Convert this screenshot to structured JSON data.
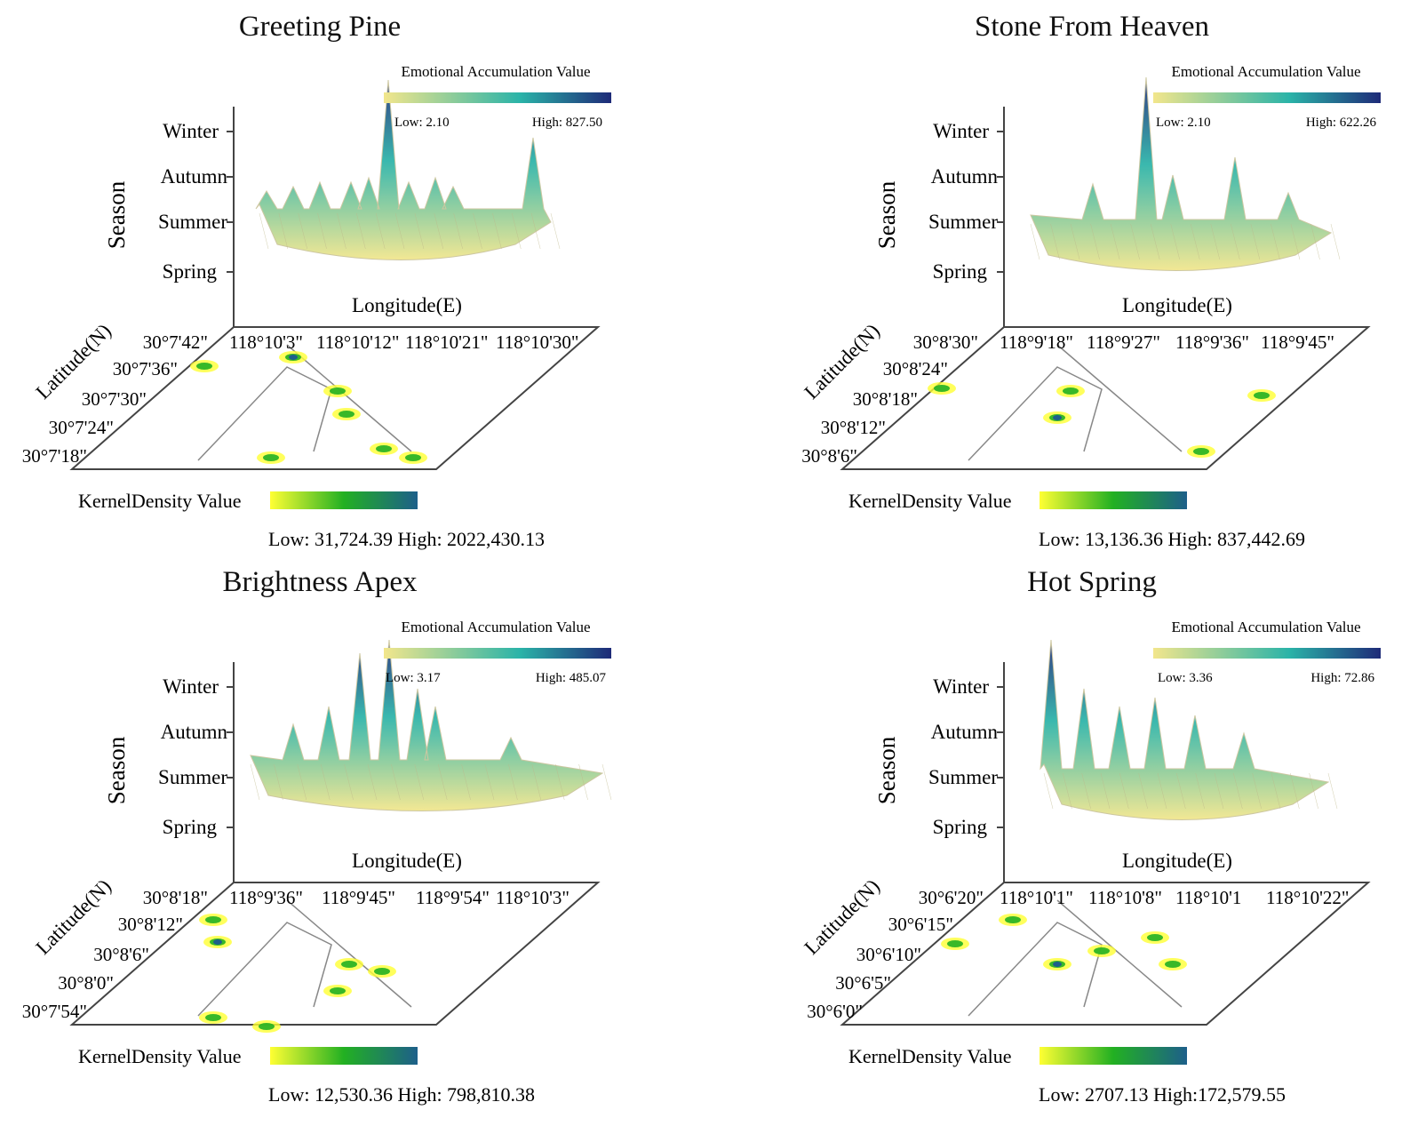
{
  "figure": {
    "season_axis_label": "Season",
    "longitude_label": "Longitude(E)",
    "latitude_label": "Latitude(N)",
    "emotion_legend_title": "Emotional Accumulation Value",
    "kernel_legend_label": "KernelDensity Value",
    "season_ticks": [
      "Winter",
      "Autumn",
      "Summer",
      "Spring"
    ]
  },
  "colors": {
    "emotion_low": "#f2e68c",
    "emotion_mid": "#2ab3a8",
    "emotion_high": "#1e2a78",
    "kernel_low": "#ffff33",
    "kernel_mid": "#22b022",
    "kernel_high": "#1d5f8a",
    "road": "#888888"
  },
  "chart_data": [
    {
      "type": "surface3d",
      "title": "Greeting Pine",
      "emotion_low": "Low: 2.10",
      "emotion_high": "High: 827.50",
      "longitude_ticks": [
        "118°10'3\"",
        "118°10'12\"",
        "118°10'21\"",
        "118°10'30\""
      ],
      "latitude_ticks": [
        "30°7'42\"",
        "30°7'36\"",
        "30°7'30\"",
        "30°7'24\"",
        "30°7'18\""
      ],
      "kernel_range": "Low: 31,724.39  High: 2022,430.13"
    },
    {
      "type": "surface3d",
      "title": "Stone From Heaven",
      "emotion_low": "Low: 2.10",
      "emotion_high": "High: 622.26",
      "longitude_ticks": [
        "118°9'18\"",
        "118°9'27\"",
        "118°9'36\"",
        "118°9'45\""
      ],
      "latitude_ticks": [
        "30°8'30\"",
        "30°8'24\"",
        "30°8'18\"",
        "30°8'12\"",
        "30°8'6\""
      ],
      "kernel_range": "Low: 13,136.36  High: 837,442.69"
    },
    {
      "type": "surface3d",
      "title": "Brightness Apex",
      "emotion_low": "Low: 3.17",
      "emotion_high": "High: 485.07",
      "longitude_ticks": [
        "118°9'36\"",
        "118°9'45\"",
        "118°9'54\"",
        "118°10'3\""
      ],
      "latitude_ticks": [
        "30°8'18\"",
        "30°8'12\"",
        "30°8'6\"",
        "30°8'0\"",
        "30°7'54\""
      ],
      "kernel_range": "Low: 12,530.36  High: 798,810.38"
    },
    {
      "type": "surface3d",
      "title": "Hot Spring",
      "emotion_low": "Low: 3.36",
      "emotion_high": "High: 72.86",
      "longitude_ticks": [
        "118°10'1\"",
        "118°10'8\"",
        "118°10'1",
        "118°10'22\""
      ],
      "latitude_ticks": [
        "30°6'20\"",
        "30°6'15\"",
        "30°6'10\"",
        "30°6'5\"",
        "30°6'0\""
      ],
      "kernel_range": "Low: 2707.13     High:172,579.55"
    }
  ]
}
